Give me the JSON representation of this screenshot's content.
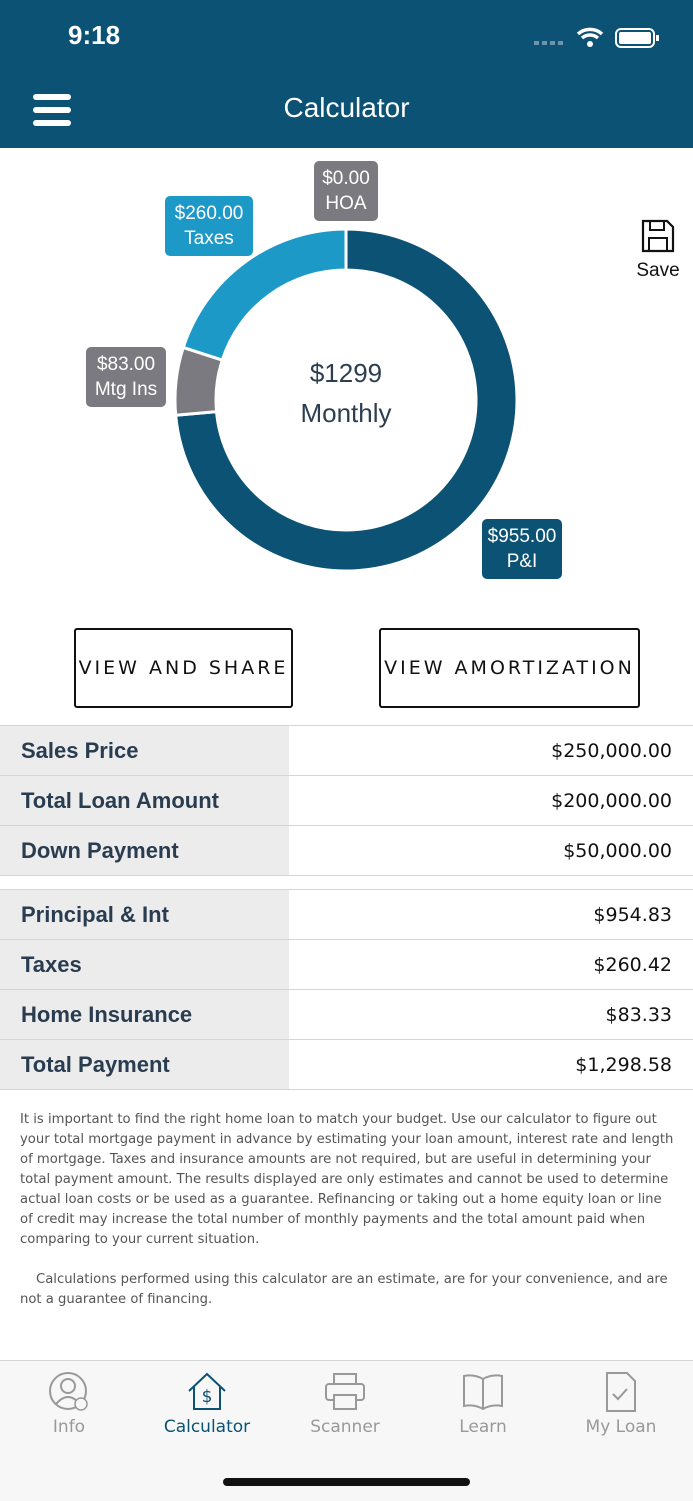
{
  "status_bar": {
    "time": "9:18"
  },
  "header": {
    "title": "Calculator"
  },
  "chart_data": {
    "type": "donut",
    "center_value": "$1299",
    "center_label": "Monthly",
    "categories": [
      "P&I",
      "Mtg Ins",
      "Taxes",
      "HOA"
    ],
    "values": [
      955,
      83,
      260,
      0
    ],
    "value_labels": [
      "$955.00",
      "$83.00",
      "$260.00",
      "$0.00"
    ],
    "colors": [
      "#0b5274",
      "#7a7a80",
      "#1d99c8",
      "#7a7a80"
    ]
  },
  "save": "Save",
  "buttons": [
    "VIEW AND SHARE",
    "VIEW AMORTIZATION"
  ],
  "loan_table": {
    "rows": [
      [
        "Sales Price",
        "$250,000.00"
      ],
      [
        "Total Loan Amount",
        "$200,000.00"
      ],
      [
        "Down Payment",
        "$50,000.00"
      ]
    ]
  },
  "payment_table": {
    "rows": [
      [
        "Principal & Int",
        "$954.83"
      ],
      [
        "Taxes",
        "$260.42"
      ],
      [
        "Home Insurance",
        "$83.33"
      ],
      [
        "Total Payment",
        "$1,298.58"
      ]
    ]
  },
  "disclaimer": [
    "It is important to find the right home loan to match your budget. Use our calculator to figure out your total mortgage payment in advance by estimating your loan amount, interest rate and length of mortgage. Taxes and insurance amounts are not required, but are useful in determining your total payment amount. The results displayed are only estimates and cannot be used to determine actual loan costs or be used as a guarantee. Refinancing or taking out a home equity loan or line of credit may increase the total number of monthly payments and the total amount paid when comparing to your current situation.",
    "Calculations performed using this calculator are an estimate, are for your convenience, and are not a guarantee of financing."
  ],
  "tab_bar": {
    "tabs": [
      "Info",
      "Calculator",
      "Scanner",
      "Learn",
      "My Loan"
    ]
  }
}
